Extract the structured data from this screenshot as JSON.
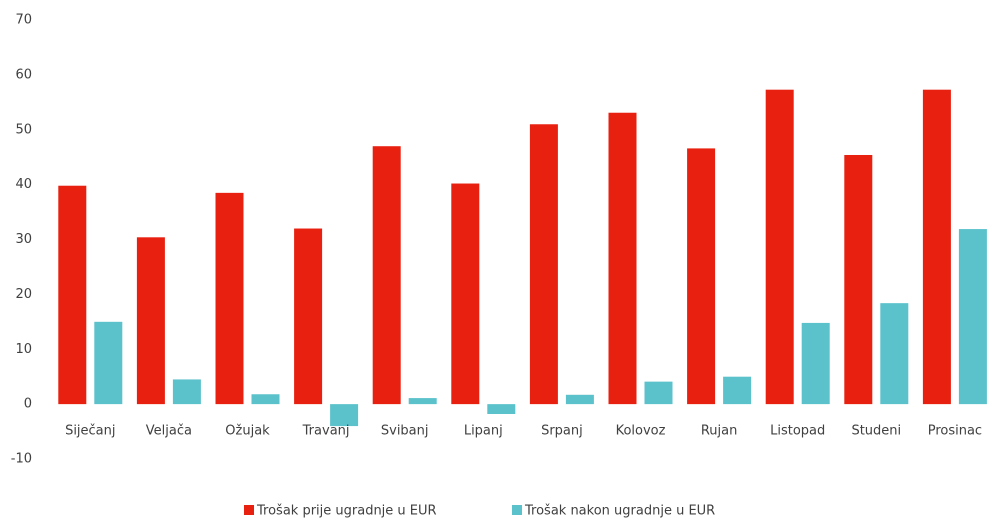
{
  "chart_data": {
    "type": "bar",
    "categories": [
      "Siječanj",
      "Veljača",
      "Ožujak",
      "Travanj",
      "Svibanj",
      "Lipanj",
      "Srpanj",
      "Kolovoz",
      "Rujan",
      "Listopad",
      "Studeni",
      "Prosinac"
    ],
    "series": [
      {
        "name": "Trošak prije ugradnje u EUR",
        "color": "#e8200f",
        "values": [
          39.8,
          30.4,
          38.5,
          32,
          47,
          40.2,
          51,
          53.1,
          46.6,
          57.3,
          45.4,
          57.3
        ]
      },
      {
        "name": "Trošak nakon ugradnje u EUR",
        "color": "#5bc2cc",
        "values": [
          15,
          4.5,
          1.8,
          -4,
          1.1,
          -1.8,
          1.7,
          4.1,
          5,
          14.8,
          18.4,
          31.9
        ]
      }
    ],
    "ylim": [
      -10,
      70
    ],
    "yticks": [
      -10,
      0,
      10,
      20,
      30,
      40,
      50,
      60,
      70
    ],
    "grid": false,
    "legend": "bottom"
  }
}
